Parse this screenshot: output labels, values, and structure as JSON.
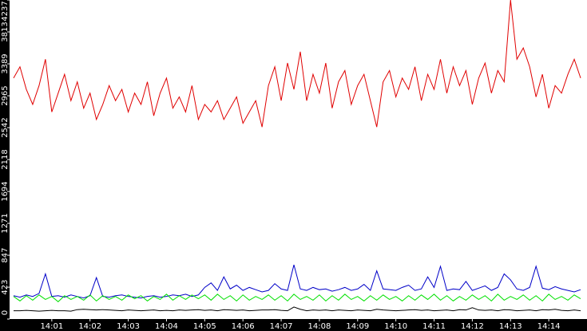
{
  "chart_data": {
    "type": "line",
    "x": [
      0,
      10,
      20,
      30,
      40,
      50,
      60,
      70,
      80,
      90,
      100,
      110,
      120,
      130,
      140,
      150,
      160,
      170,
      180,
      190,
      200,
      210,
      220,
      230,
      240,
      250,
      260,
      270,
      280,
      290,
      300,
      310,
      320,
      330,
      340,
      350,
      360,
      370,
      380,
      390,
      400,
      410,
      420,
      430,
      440,
      450,
      460,
      470,
      480,
      490,
      500,
      510,
      520,
      530,
      540,
      550,
      560,
      570,
      580,
      590,
      600,
      610,
      620,
      630,
      640,
      650,
      660,
      670,
      680,
      690,
      700,
      710,
      720,
      730,
      740,
      750,
      760,
      770,
      780,
      790,
      800,
      810,
      820,
      830,
      840,
      850,
      860,
      870,
      880,
      890
    ],
    "xlim": [
      0,
      900
    ],
    "xticks": [
      {
        "value": 60,
        "label": "14:01"
      },
      {
        "value": 120,
        "label": "14:02"
      },
      {
        "value": 180,
        "label": "14:03"
      },
      {
        "value": 240,
        "label": "14:04"
      },
      {
        "value": 300,
        "label": "14:05"
      },
      {
        "value": 360,
        "label": "14:06"
      },
      {
        "value": 420,
        "label": "14:07"
      },
      {
        "value": 480,
        "label": "14:08"
      },
      {
        "value": 540,
        "label": "14:09"
      },
      {
        "value": 600,
        "label": "14:10"
      },
      {
        "value": 660,
        "label": "14:11"
      },
      {
        "value": 720,
        "label": "14:12"
      },
      {
        "value": 780,
        "label": "14:13"
      },
      {
        "value": 840,
        "label": "14:14"
      }
    ],
    "ylim": [
      0,
      4237
    ],
    "yticks": [
      0,
      423,
      847,
      1271,
      1694,
      2118,
      2542,
      2965,
      3389,
      3813,
      4237
    ],
    "grid": false,
    "series": [
      {
        "color": "#e00000",
        "values": [
          3200,
          3350,
          3050,
          2850,
          3100,
          3450,
          2750,
          3000,
          3250,
          2900,
          3150,
          2800,
          3000,
          2650,
          2850,
          3100,
          2900,
          3050,
          2750,
          3000,
          2850,
          3150,
          2700,
          3000,
          3200,
          2800,
          2950,
          2750,
          3100,
          2650,
          2850,
          2750,
          2900,
          2650,
          2800,
          2950,
          2600,
          2750,
          2900,
          2550,
          3100,
          3350,
          2900,
          3400,
          3050,
          3550,
          2900,
          3250,
          3000,
          3400,
          2800,
          3150,
          3300,
          2850,
          3100,
          3250,
          2900,
          2550,
          3150,
          3300,
          2950,
          3200,
          3050,
          3350,
          2900,
          3250,
          3050,
          3450,
          3000,
          3350,
          3100,
          3300,
          2850,
          3200,
          3400,
          3000,
          3300,
          3150,
          4237,
          3450,
          3600,
          3350,
          2950,
          3250,
          2800,
          3100,
          3000,
          3250,
          3450,
          3200
        ]
      },
      {
        "color": "#0000c8",
        "values": [
          310,
          290,
          320,
          300,
          340,
          600,
          300,
          310,
          290,
          320,
          300,
          280,
          310,
          550,
          300,
          290,
          310,
          320,
          300,
          290,
          280,
          300,
          310,
          290,
          300,
          320,
          310,
          330,
          300,
          320,
          420,
          480,
          380,
          560,
          400,
          450,
          380,
          420,
          390,
          360,
          380,
          470,
          400,
          380,
          720,
          400,
          380,
          420,
          390,
          400,
          370,
          390,
          420,
          380,
          400,
          460,
          380,
          640,
          400,
          390,
          380,
          420,
          450,
          380,
          400,
          560,
          420,
          700,
          380,
          400,
          390,
          500,
          380,
          410,
          440,
          380,
          420,
          600,
          520,
          400,
          380,
          420,
          700,
          410,
          390,
          430,
          400,
          380,
          360,
          390
        ]
      },
      {
        "color": "#00e000",
        "values": [
          300,
          240,
          310,
          250,
          320,
          260,
          300,
          230,
          310,
          260,
          300,
          250,
          320,
          240,
          310,
          260,
          300,
          250,
          320,
          270,
          310,
          240,
          300,
          260,
          330,
          250,
          310,
          260,
          320,
          270,
          320,
          250,
          330,
          260,
          310,
          240,
          320,
          250,
          300,
          260,
          320,
          250,
          310,
          240,
          330,
          260,
          300,
          250,
          320,
          240,
          310,
          250,
          330,
          260,
          300,
          240,
          310,
          250,
          320,
          260,
          300,
          240,
          310,
          250,
          320,
          260,
          330,
          250,
          310,
          240,
          300,
          250,
          320,
          260,
          310,
          240,
          330,
          250,
          300,
          260,
          320,
          250,
          310,
          240,
          330,
          260,
          300,
          250,
          320,
          270
        ]
      },
      {
        "color": "#000000",
        "values": [
          110,
          110,
          115,
          110,
          105,
          110,
          115,
          110,
          110,
          105,
          125,
          130,
          125,
          120,
          125,
          120,
          115,
          110,
          120,
          115,
          110,
          115,
          120,
          110,
          115,
          110,
          120,
          115,
          120,
          125,
          115,
          120,
          110,
          125,
          120,
          115,
          120,
          110,
          115,
          120,
          120,
          125,
          115,
          110,
          160,
          130,
          110,
          120,
          115,
          120,
          110,
          120,
          115,
          110,
          120,
          115,
          110,
          130,
          120,
          115,
          110,
          115,
          120,
          125,
          115,
          120,
          110,
          115,
          120,
          110,
          125,
          120,
          150,
          120,
          115,
          120,
          110,
          125,
          120,
          110,
          115,
          120,
          110,
          125,
          120,
          130,
          115,
          110,
          120,
          110
        ]
      }
    ]
  }
}
